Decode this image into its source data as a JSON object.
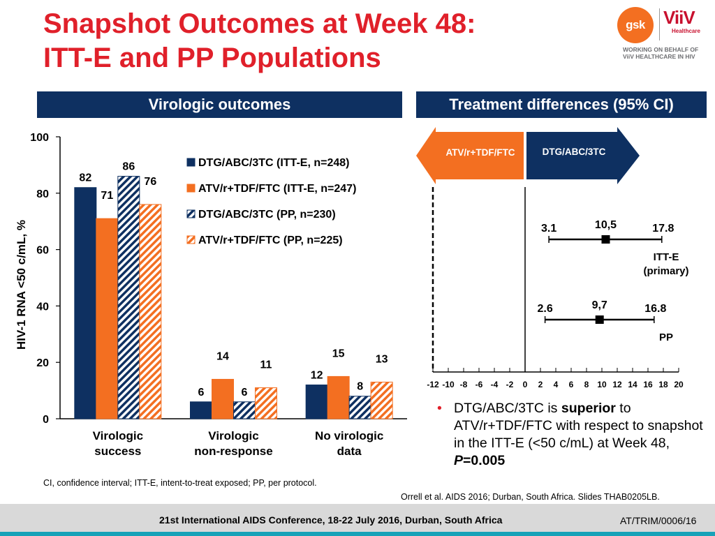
{
  "title": {
    "line1": "Snapshot Outcomes at Week 48:",
    "line2": "ITT-E and PP Populations"
  },
  "logo": {
    "gsk": "gsk",
    "viiv": "ViiV",
    "healthcare": "Healthcare",
    "tagline1": "WORKING ON BEHALF OF",
    "tagline2": "ViiV HEALTHCARE IN HIV"
  },
  "banners": {
    "left": "Virologic outcomes",
    "right": "Treatment differences (95% CI)"
  },
  "colors": {
    "navy": "#0e3061",
    "orange": "#f36f21",
    "red": "#e0202a"
  },
  "chart_data": [
    {
      "type": "bar",
      "ylabel": "HIV-1 RNA <50 c/mL, %",
      "ylim": [
        0,
        100
      ],
      "yticks": [
        0,
        20,
        40,
        60,
        80,
        100
      ],
      "categories": [
        "Virologic success",
        "Virologic non-response",
        "No virologic data"
      ],
      "category_lines": [
        [
          "Virologic",
          "success"
        ],
        [
          "Virologic",
          "non-response"
        ],
        [
          "No virologic",
          "data"
        ]
      ],
      "legend_position": "top-right",
      "series": [
        {
          "name": "DTG/ABC/3TC (ITT-E, n=248)",
          "values": [
            82,
            6,
            12
          ],
          "color": "#0e3061",
          "pattern": "solid"
        },
        {
          "name": "ATV/r+TDF/FTC (ITT-E, n=247)",
          "values": [
            71,
            14,
            15
          ],
          "color": "#f36f21",
          "pattern": "solid"
        },
        {
          "name": "DTG/ABC/3TC (PP, n=230)",
          "values": [
            86,
            6,
            8
          ],
          "color": "#0e3061",
          "pattern": "hatch"
        },
        {
          "name": "ATV/r+TDF/FTC (PP, n=225)",
          "values": [
            76,
            11,
            13
          ],
          "color": "#f36f21",
          "pattern": "hatch"
        }
      ]
    },
    {
      "type": "scatter",
      "subtype": "forest",
      "xlim": [
        -12,
        20
      ],
      "xticks": [
        -12,
        -10,
        -8,
        -6,
        -4,
        -2,
        0,
        2,
        4,
        6,
        8,
        10,
        12,
        14,
        16,
        18,
        20
      ],
      "reference_line": -12,
      "arrows": {
        "left": "ATV/r+TDF/FTC",
        "right": "DTG/ABC/3TC"
      },
      "rows": [
        {
          "label_line1": "ITT-E",
          "label_line2": "(primary)",
          "estimate": 10.5,
          "estimate_text": "10,5",
          "lower": 3.1,
          "lower_text": "3.1",
          "upper": 17.8,
          "upper_text": "17.8"
        },
        {
          "label_line1": "PP",
          "label_line2": "",
          "estimate": 9.7,
          "estimate_text": "9,7",
          "lower": 2.6,
          "lower_text": "2.6",
          "upper": 16.8,
          "upper_text": "16.8"
        }
      ]
    }
  ],
  "bullet": {
    "part1": "DTG/ABC/3TC is ",
    "bold1": "superior",
    "part2": " to ATV/r+TDF/FTC with respect to snapshot in the ITT-E (<50 c/mL) at Week 48, ",
    "p_label": "P",
    "p_value": "=0.005"
  },
  "footnotes": {
    "abbreviations": "CI, confidence interval; ITT-E, intent-to-treat exposed; PP, per protocol.",
    "reference": "Orrell et al. AIDS 2016; Durban, South Africa. Slides THAB0205LB."
  },
  "footer": {
    "conference": "21st International AIDS Conference, 18-22 July 2016, Durban, South Africa",
    "code": "AT/TRIM/0006/16"
  }
}
